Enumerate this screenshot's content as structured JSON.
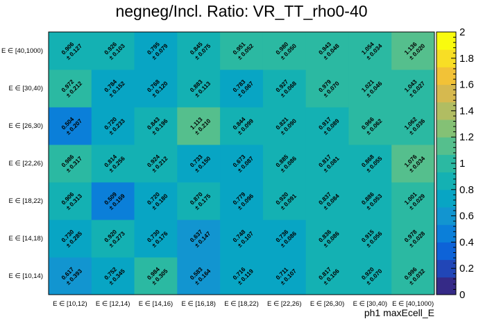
{
  "chart_data": {
    "type": "heatmap",
    "title": "negneg/Incl. Ratio: VR_TT_rho0-40",
    "xlabel": "ph1 maxEcell_E",
    "ylabel": "",
    "x_categories": [
      "E ∈ [10,12)",
      "E ∈ [12,14)",
      "E ∈ [14,16)",
      "E ∈ [16,18)",
      "E ∈ [18,22)",
      "E ∈ [22,26)",
      "E ∈ [26,30)",
      "E ∈ [30,40)",
      "E ∈ [40,1000)"
    ],
    "y_categories": [
      "E ∈ [10,14)",
      "E ∈ [14,18)",
      "E ∈ [18,22)",
      "E ∈ [22,26)",
      "E ∈ [26,30)",
      "E ∈ [30,40)",
      "E ∈ [40,1000)"
    ],
    "values": [
      [
        0.617,
        0.752,
        0.984,
        0.583,
        0.716,
        0.711,
        0.817,
        0.92,
        0.996
      ],
      [
        0.73,
        0.92,
        0.73,
        0.637,
        0.748,
        0.736,
        0.836,
        0.915,
        0.978
      ],
      [
        0.906,
        0.509,
        0.72,
        0.87,
        0.779,
        0.92,
        0.837,
        0.886,
        1.001
      ],
      [
        0.986,
        0.814,
        0.924,
        0.733,
        0.673,
        0.885,
        0.817,
        0.868,
        1.076
      ],
      [
        0.504,
        0.72,
        0.843,
        1.113,
        0.844,
        0.821,
        0.917,
        0.966,
        1.062
      ],
      [
        0.972,
        0.784,
        0.768,
        0.883,
        0.783,
        0.927,
        0.979,
        1.021,
        1.043
      ],
      [
        0.906,
        0.926,
        0.795,
        0.845,
        0.951,
        0.98,
        0.943,
        1.054,
        1.136
      ]
    ],
    "errors": [
      [
        0.393,
        0.345,
        0.305,
        0.164,
        0.119,
        0.107,
        0.106,
        0.07,
        0.032
      ],
      [
        0.285,
        0.273,
        0.176,
        0.147,
        0.107,
        0.086,
        0.086,
        0.056,
        0.028
      ],
      [
        0.313,
        0.159,
        0.18,
        0.175,
        0.096,
        0.091,
        0.084,
        0.053,
        0.029
      ],
      [
        0.317,
        0.256,
        0.212,
        0.15,
        0.087,
        0.086,
        0.081,
        0.055,
        0.034
      ],
      [
        0.207,
        0.233,
        0.196,
        0.21,
        0.099,
        0.09,
        0.089,
        0.062,
        0.036
      ],
      [
        0.212,
        0.152,
        0.12,
        0.113,
        0.067,
        0.068,
        0.07,
        0.046,
        0.027
      ],
      [
        0.127,
        0.103,
        0.079,
        0.075,
        0.052,
        0.05,
        0.048,
        0.034,
        0.02
      ]
    ],
    "zlim": [
      0,
      2
    ],
    "z_ticks": [
      "0",
      "0.2",
      "0.4",
      "0.6",
      "0.8",
      "1",
      "1.2",
      "1.4",
      "1.6",
      "1.8",
      "2"
    ],
    "colormap": [
      "#352a87",
      "#2146b7",
      "#0d63d8",
      "#0b7fd9",
      "#1295d0",
      "#08a5c4",
      "#14b1b3",
      "#2bb9a2",
      "#55bf8d",
      "#84c175",
      "#b1bd62",
      "#d6b94f",
      "#f2c237",
      "#f8de25",
      "#f9fb0e"
    ],
    "grid": false
  }
}
